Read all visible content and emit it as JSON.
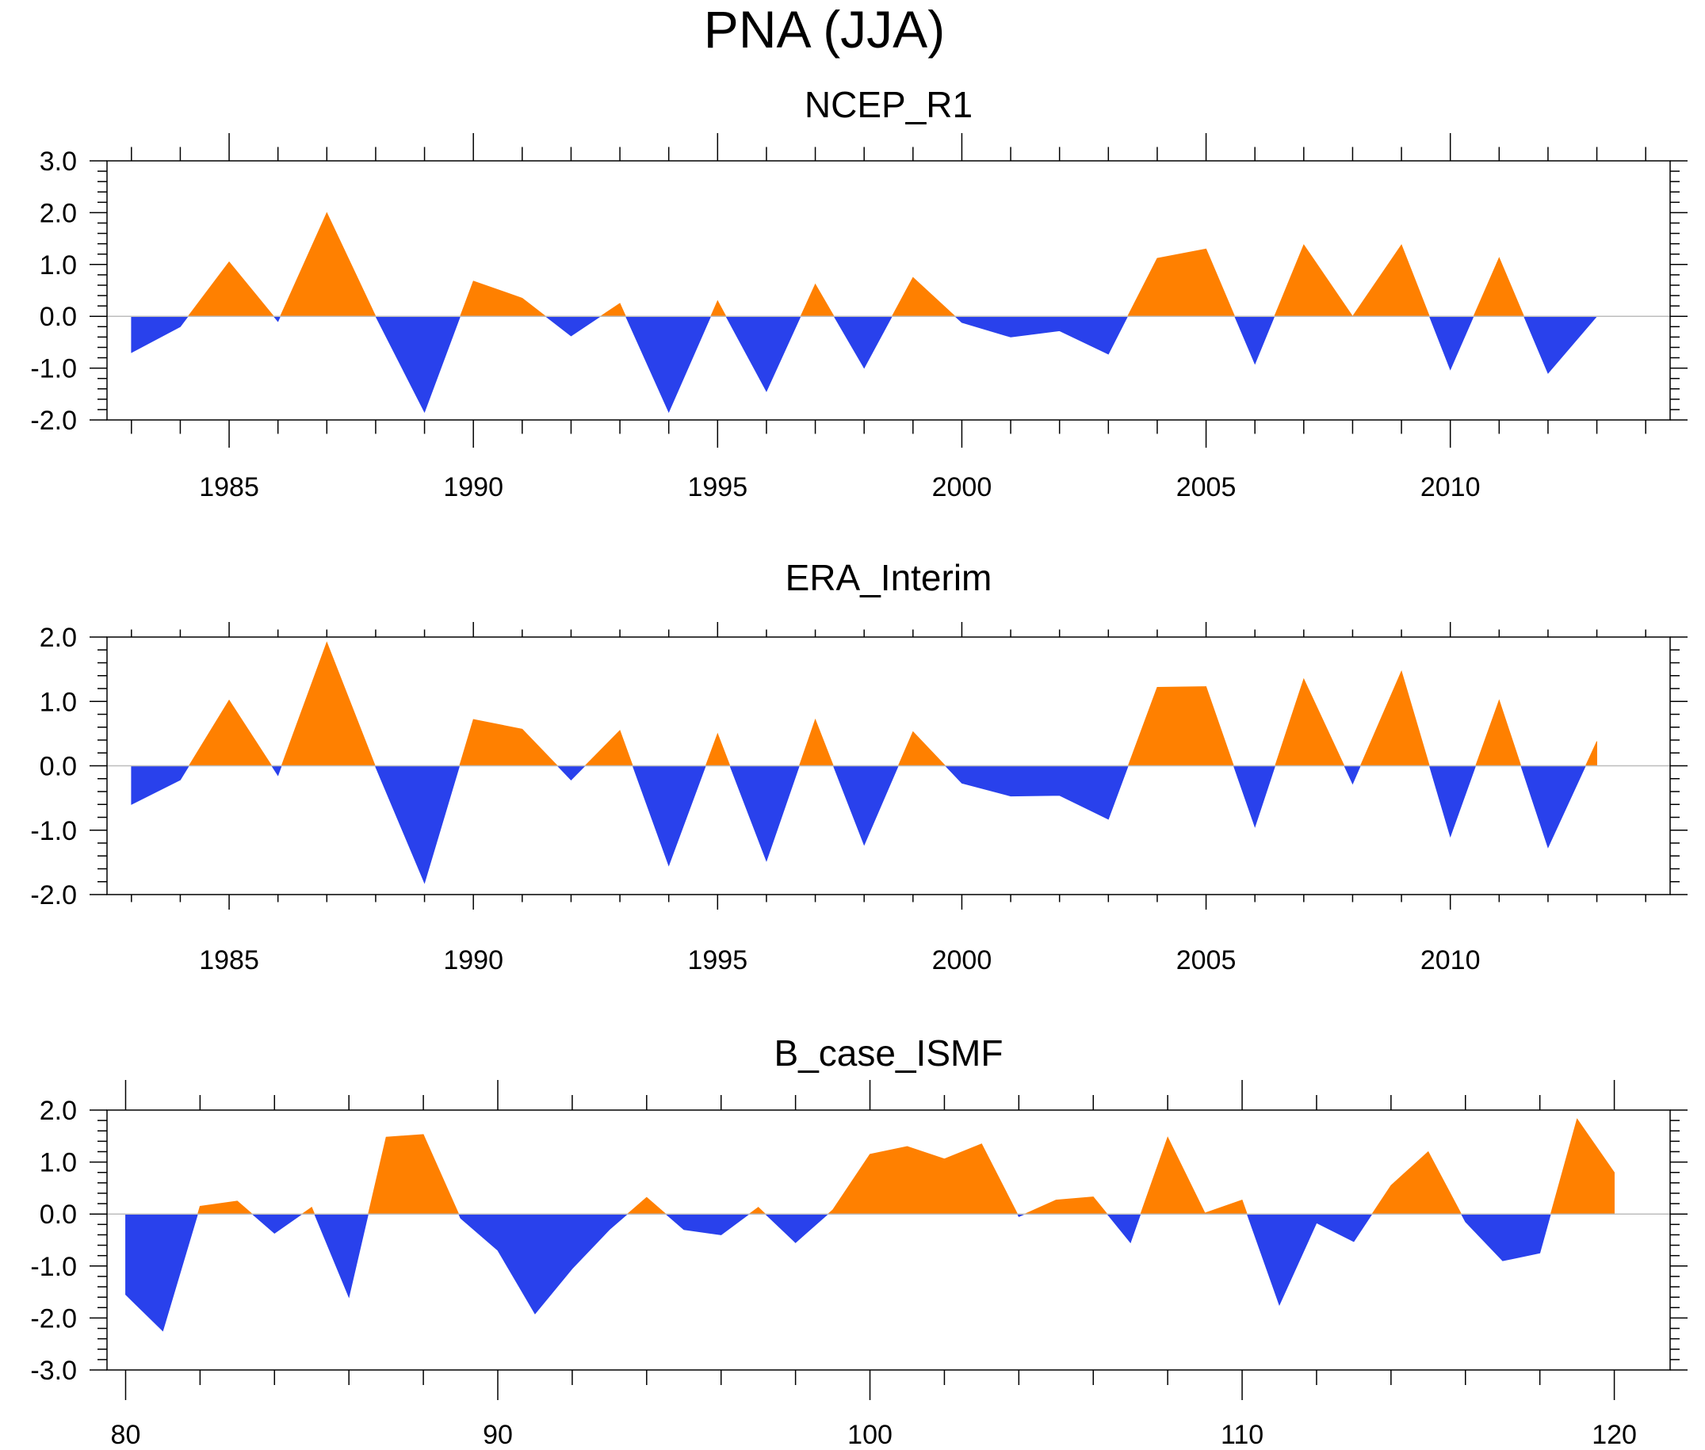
{
  "figure_title": "PNA (JJA)",
  "colors": {
    "positive": "#ff8000",
    "negative": "#2941ec",
    "zero_line": "#bdbdbd",
    "axis": "#000000"
  },
  "chart_data": [
    {
      "type": "area",
      "title": "NCEP_R1",
      "xlabel": "",
      "ylabel": "",
      "xlim": [
        1982.5,
        2014.5
      ],
      "ylim": [
        -2.0,
        3.0
      ],
      "x_major_ticks": [
        1985,
        1990,
        1995,
        2000,
        2005,
        2010
      ],
      "x_tick_labels": [
        "1985",
        "1990",
        "1995",
        "2000",
        "2005",
        "2010"
      ],
      "y_major_ticks": [
        -2.0,
        -1.0,
        0.0,
        1.0,
        2.0,
        3.0
      ],
      "y_tick_labels": [
        "-2.0",
        "-1.0",
        "0.0",
        "1.0",
        "2.0",
        "3.0"
      ],
      "x": [
        1983,
        1984,
        1985,
        1986,
        1987,
        1988,
        1989,
        1990,
        1991,
        1992,
        1993,
        1994,
        1995,
        1996,
        1997,
        1998,
        1999,
        2000,
        2001,
        2002,
        2003,
        2004,
        2005,
        2006,
        2007,
        2008,
        2009,
        2010,
        2011,
        2012,
        2013
      ],
      "values": [
        -0.7,
        -0.2,
        1.05,
        -0.1,
        2.0,
        0.0,
        -1.85,
        0.68,
        0.35,
        -0.38,
        0.25,
        -1.85,
        0.3,
        -1.45,
        0.62,
        -1.0,
        0.75,
        -0.12,
        -0.4,
        -0.28,
        -0.73,
        1.12,
        1.3,
        -0.92,
        1.38,
        0.0,
        1.38,
        -1.03,
        1.13,
        -1.1,
        0.0
      ]
    },
    {
      "type": "area",
      "title": "ERA_Interim",
      "xlabel": "",
      "ylabel": "",
      "xlim": [
        1982.5,
        2014.5
      ],
      "ylim": [
        -2.0,
        2.0
      ],
      "x_major_ticks": [
        1985,
        1990,
        1995,
        2000,
        2005,
        2010
      ],
      "x_tick_labels": [
        "1985",
        "1990",
        "1995",
        "2000",
        "2005",
        "2010"
      ],
      "y_major_ticks": [
        -2.0,
        -1.0,
        0.0,
        1.0,
        2.0
      ],
      "y_tick_labels": [
        "-2.0",
        "-1.0",
        "0.0",
        "1.0",
        "2.0"
      ],
      "x": [
        1983,
        1984,
        1985,
        1986,
        1987,
        1988,
        1989,
        1990,
        1991,
        1992,
        1993,
        1994,
        1995,
        1996,
        1997,
        1998,
        1999,
        2000,
        2001,
        2002,
        2003,
        2004,
        2005,
        2006,
        2007,
        2008,
        2009,
        2010,
        2011,
        2012,
        2013
      ],
      "values": [
        -0.6,
        -0.22,
        1.02,
        -0.15,
        1.92,
        -0.02,
        -1.82,
        0.72,
        0.57,
        -0.22,
        0.55,
        -1.55,
        0.5,
        -1.48,
        0.72,
        -1.23,
        0.53,
        -0.27,
        -0.47,
        -0.46,
        -0.83,
        1.22,
        1.23,
        -0.95,
        1.35,
        -0.28,
        1.47,
        -1.1,
        1.02,
        -1.27,
        0.38
      ]
    },
    {
      "type": "area",
      "title": "B_case_ISMF",
      "xlabel": "",
      "ylabel": "",
      "xlim": [
        79.5,
        121.5
      ],
      "ylim": [
        -3.0,
        2.0
      ],
      "x_major_ticks": [
        80,
        90,
        100,
        110,
        120
      ],
      "x_tick_labels": [
        "80",
        "90",
        "100",
        "110",
        "120"
      ],
      "y_major_ticks": [
        -3.0,
        -2.0,
        -1.0,
        0.0,
        1.0,
        2.0
      ],
      "y_tick_labels": [
        "-3.0",
        "-2.0",
        "-1.0",
        "0.0",
        "1.0",
        "2.0"
      ],
      "x": [
        80,
        81,
        82,
        83,
        84,
        85,
        86,
        87,
        88,
        89,
        90,
        91,
        92,
        93,
        94,
        95,
        96,
        97,
        98,
        99,
        100,
        101,
        102,
        103,
        104,
        105,
        106,
        107,
        108,
        109,
        110,
        111,
        112,
        113,
        114,
        115,
        116,
        117,
        118,
        119,
        120
      ],
      "values": [
        -1.55,
        -2.25,
        0.15,
        0.25,
        -0.37,
        0.13,
        -1.6,
        1.48,
        1.53,
        -0.08,
        -0.7,
        -1.92,
        -1.05,
        -0.3,
        0.32,
        -0.3,
        -0.4,
        0.13,
        -0.55,
        0.08,
        1.15,
        1.3,
        1.06,
        1.35,
        -0.05,
        0.27,
        0.33,
        -0.55,
        1.48,
        0.02,
        0.27,
        -1.75,
        -0.17,
        -0.53,
        0.55,
        1.2,
        -0.15,
        -0.9,
        -0.75,
        1.83,
        0.8
      ]
    }
  ]
}
